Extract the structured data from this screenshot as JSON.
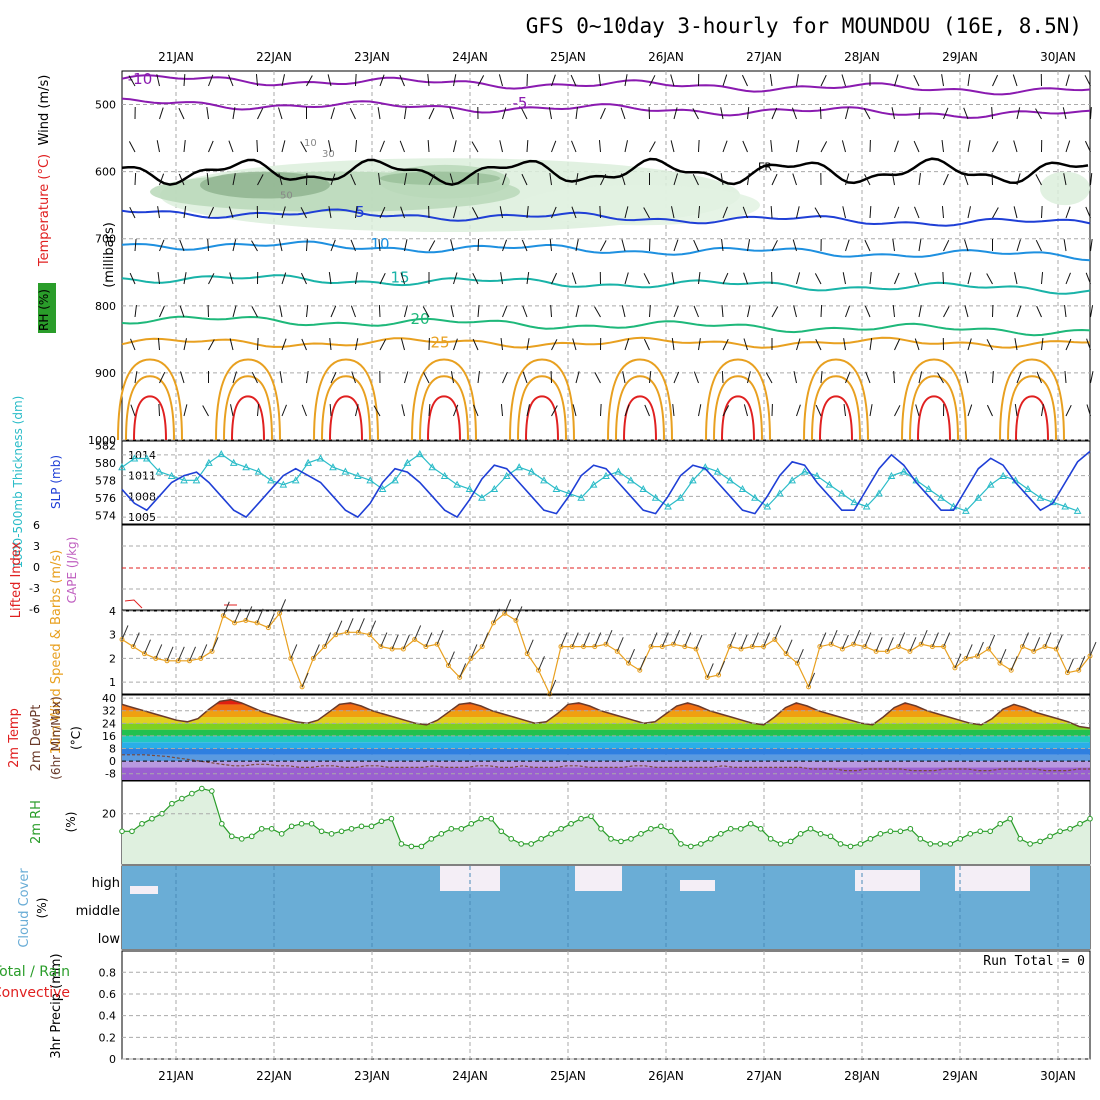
{
  "title": "GFS 0~10day 3-hourly for MOUNDOU (16E, 8.5N)",
  "dates": [
    "21JAN",
    "22JAN",
    "23JAN",
    "24JAN",
    "25JAN",
    "26JAN",
    "27JAN",
    "28JAN",
    "29JAN",
    "30JAN"
  ],
  "colors": {
    "purple": "#8a1ab0",
    "blue": "#1f3fd6",
    "ltblue": "#1e90e0",
    "teal": "#19b3a8",
    "green": "#1eb87a",
    "orange": "#e8a020",
    "red": "#e02020",
    "cyan": "#2bbcc8",
    "sea": "#6aadd6",
    "rhgreen": "#2a9d2a",
    "cape": "#c060c0"
  },
  "chart_data": [
    {
      "type": "line",
      "panel": "upper-air",
      "ylabel": "(millibars)",
      "side_labels": {
        "rh": "RH (%)",
        "temp": "Temperature (°C)",
        "wind": "Wind (m/s)"
      },
      "yticks": [
        500,
        600,
        700,
        800,
        900,
        1000
      ],
      "ylim": [
        450,
        1000
      ],
      "isotherms": [
        {
          "name": "-10",
          "pressure": 462
        },
        {
          "name": "-5",
          "pressure": 498
        },
        {
          "name": "5",
          "pressure": 660
        },
        {
          "name": "10",
          "pressure": 708
        },
        {
          "name": "15",
          "pressure": 758
        },
        {
          "name": "20",
          "pressure": 820
        },
        {
          "name": "25",
          "pressure": 855
        }
      ],
      "labels": {
        "freezing": "FR",
        "rh30": "30",
        "rh50": "50",
        "rh10": "10"
      }
    },
    {
      "type": "line",
      "panel": "thickness-slp",
      "ylabel_left": "1000-500mb Thickness (dm)",
      "ylabel_right": "SLP (mb)",
      "yticks_left": [
        574,
        576,
        578,
        580,
        582
      ],
      "yticks_right": [
        1005,
        1008,
        1011,
        1014
      ],
      "series": [
        {
          "name": "Thickness",
          "values": [
            579.5,
            580.5,
            580.5,
            579,
            578.5,
            578,
            578,
            580,
            581,
            580,
            579.5,
            579,
            578,
            577.5,
            578,
            580,
            580.5,
            579.5,
            579,
            578.5,
            578,
            577,
            578,
            580,
            581,
            579.5,
            578.5,
            577.5,
            577,
            576,
            577,
            578.5,
            579.5,
            579,
            578,
            577,
            576.5,
            576,
            577.5,
            578.5,
            579,
            578,
            577,
            576,
            575,
            576,
            578,
            579.5,
            579,
            578,
            577,
            576,
            575,
            576.5,
            578,
            579,
            578.5,
            577.5,
            576.5,
            575.5,
            575,
            576.5,
            578.5,
            579,
            578,
            577,
            576,
            575,
            574.5,
            576,
            577.5,
            578.5,
            578,
            577,
            576,
            575.5,
            575,
            574.5
          ]
        },
        {
          "name": "SLP",
          "values": [
            1009,
            1007,
            1006,
            1008,
            1010,
            1011,
            1011.5,
            1010,
            1008,
            1006,
            1005,
            1007,
            1009,
            1011,
            1012,
            1011,
            1010,
            1008,
            1006,
            1005,
            1007,
            1010,
            1012,
            1011.5,
            1010,
            1008,
            1006,
            1005,
            1007.5,
            1010.5,
            1012.5,
            1012,
            1010,
            1008,
            1006,
            1005.5,
            1008,
            1011,
            1012.5,
            1012,
            1010,
            1008,
            1006,
            1005.5,
            1008,
            1011,
            1012.5,
            1012,
            1010,
            1008,
            1006,
            1005.5,
            1008,
            1011,
            1013,
            1012.5,
            1010,
            1008,
            1006,
            1006,
            1009,
            1012,
            1014,
            1012.5,
            1010,
            1008,
            1006,
            1006,
            1009,
            1012,
            1013.5,
            1012.5,
            1010,
            1008,
            1006,
            1007,
            1010,
            1013,
            1014.5
          ]
        }
      ]
    },
    {
      "type": "line",
      "panel": "cape-li",
      "ylabel_left": "Lifted Index",
      "ylabel_right": "CAPE (J/kg)",
      "yticks": [
        "6",
        "3",
        "0",
        "-3",
        "-6"
      ],
      "series": [
        {
          "name": "Lifted Index",
          "segments": [
            [
              5.5,
              5.5,
              6
            ],
            [
              6,
              6
            ]
          ]
        }
      ]
    },
    {
      "type": "line",
      "panel": "wind10m",
      "ylabel": "10m Wind Speed & Barbs (m/s)",
      "yticks": [
        1,
        2,
        3,
        4
      ],
      "ylim": [
        0.5,
        4
      ],
      "series": [
        {
          "name": "10m Wind Speed",
          "values": [
            2.8,
            2.5,
            2.2,
            2,
            1.9,
            1.9,
            1.9,
            2,
            2.3,
            3.8,
            3.5,
            3.6,
            3.5,
            3.3,
            3.9,
            2,
            0.8,
            2,
            2.5,
            3,
            3.1,
            3.1,
            3,
            2.5,
            2.4,
            2.4,
            2.8,
            2.5,
            2.6,
            1.7,
            1.2,
            2,
            2.5,
            3.5,
            3.9,
            3.6,
            2.2,
            1.5,
            0.5,
            2.5,
            2.5,
            2.5,
            2.5,
            2.6,
            2.3,
            1.8,
            1.5,
            2.5,
            2.5,
            2.6,
            2.5,
            2.4,
            1.2,
            1.3,
            2.5,
            2.4,
            2.5,
            2.5,
            2.8,
            2.2,
            1.8,
            0.8,
            2.5,
            2.6,
            2.4,
            2.6,
            2.5,
            2.3,
            2.3,
            2.5,
            2.3,
            2.6,
            2.5,
            2.5,
            1.6,
            2,
            2.1,
            2.4,
            1.8,
            1.5,
            2.5,
            2.3,
            2.5,
            2.4,
            1.4,
            1.5,
            2.1
          ]
        }
      ]
    },
    {
      "type": "area",
      "panel": "temp2m",
      "ylabel": "2m Temp 2m DewPt (6hr Min/Max) (°C)",
      "yticks": [
        -8,
        0,
        8,
        16,
        24,
        32,
        40
      ],
      "ylim": [
        -12,
        42
      ],
      "series": [
        {
          "name": "2m Temp",
          "values": [
            36,
            34,
            32,
            30,
            28,
            26,
            25,
            27,
            33,
            38,
            39,
            37,
            34,
            31,
            29,
            27,
            25,
            24,
            26,
            31,
            36,
            37,
            35,
            32,
            30,
            28,
            26,
            24,
            23,
            26,
            31,
            36,
            37,
            35,
            32,
            30,
            28,
            26,
            24,
            25,
            30,
            36,
            37,
            35,
            32,
            30,
            28,
            26,
            24,
            25,
            30,
            35,
            37,
            35,
            32,
            30,
            28,
            26,
            24,
            23,
            28,
            34,
            37,
            35,
            32,
            30,
            28,
            26,
            24,
            23,
            28,
            34,
            37,
            35,
            32,
            30,
            28,
            26,
            24,
            23,
            27,
            33,
            36,
            34,
            31,
            29,
            27,
            25,
            22,
            21
          ]
        },
        {
          "name": "2m DewPt",
          "values": [
            4,
            4,
            4,
            3.5,
            3,
            2,
            1,
            0,
            -1,
            -2,
            -3,
            -3,
            -2,
            -2,
            -3,
            -3,
            -4,
            -4,
            -3,
            -3,
            -4,
            -4,
            -3,
            -3,
            -4,
            -4,
            -4,
            -4,
            -3,
            -4,
            -4,
            -4,
            -3,
            -3,
            -4,
            -4,
            -3,
            -4,
            -4,
            -4,
            -3,
            -3,
            -4,
            -4,
            -4,
            -4,
            -3,
            -3,
            -4,
            -4,
            -4,
            -4,
            -4,
            -4,
            -3,
            -4,
            -4,
            -4,
            -4,
            -4,
            -4,
            -4,
            -5,
            -5,
            -5,
            -6,
            -6,
            -5,
            -5,
            -5,
            -5,
            -6,
            -6,
            -6,
            -5,
            -5,
            -5,
            -6,
            -6,
            -5,
            -5,
            -5,
            -5,
            -6,
            -6,
            -6,
            -5,
            -5
          ]
        }
      ]
    },
    {
      "type": "area",
      "panel": "rh2m",
      "ylabel": "2m RH (%)",
      "yticks": [
        20
      ],
      "ylim": [
        0,
        33
      ],
      "series": [
        {
          "name": "2m RH",
          "values": [
            13,
            13,
            16,
            18,
            20,
            24,
            26,
            28,
            30,
            29,
            16,
            11,
            10,
            11,
            14,
            14,
            12,
            15,
            16,
            16,
            13,
            12,
            13,
            14,
            15,
            15,
            17,
            18,
            8,
            7,
            7,
            10,
            12,
            14,
            14,
            16,
            18,
            18,
            13,
            10,
            8,
            8,
            10,
            12,
            14,
            16,
            18,
            19,
            14,
            10,
            9,
            10,
            12,
            14,
            15,
            13,
            8,
            7,
            8,
            10,
            12,
            14,
            14,
            16,
            14,
            10,
            8,
            9,
            12,
            14,
            12,
            11,
            8,
            7,
            8,
            10,
            12,
            13,
            13,
            14,
            10,
            8,
            8,
            8,
            10,
            12,
            13,
            13,
            16,
            18,
            10,
            8,
            9,
            11,
            13,
            14,
            16,
            18
          ]
        }
      ]
    },
    {
      "type": "table",
      "panel": "cloud",
      "ylabel": "Cloud Cover (%)",
      "levels": [
        "high",
        "middle",
        "low"
      ],
      "high_cloud": [
        0,
        1,
        0,
        0,
        0,
        1,
        1,
        0,
        0,
        0,
        0,
        0,
        0,
        0,
        0,
        0,
        0,
        0,
        0,
        0,
        0,
        0,
        0,
        0,
        0,
        0,
        0,
        0,
        0,
        0,
        0,
        0,
        0,
        0,
        0,
        0,
        0,
        0,
        1,
        0,
        0,
        0,
        0,
        0,
        0,
        0,
        0,
        0,
        0,
        0,
        0,
        0,
        0,
        1,
        0,
        0,
        0,
        0,
        0,
        0,
        0,
        0,
        0,
        0,
        0,
        0,
        0,
        0,
        0,
        0,
        0,
        0,
        0,
        0,
        0,
        0,
        0,
        0,
        0,
        0,
        0,
        0,
        0,
        0,
        0,
        0,
        0,
        0
      ]
    },
    {
      "type": "bar",
      "panel": "precip",
      "ylabel": "3hr Precip (mm)",
      "side_labels": {
        "total": "Total / Rain",
        "conv": "Convective"
      },
      "yticks": [
        "0",
        "0.2",
        "0.4",
        "0.6",
        "0.8"
      ],
      "ylim": [
        0,
        1
      ],
      "run_total": "Run Total = 0",
      "values": []
    }
  ]
}
